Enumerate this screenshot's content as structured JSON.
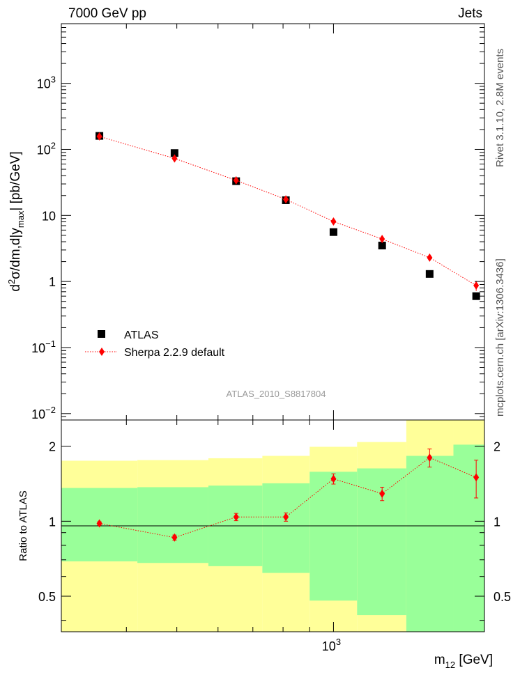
{
  "header": {
    "left": "7000 GeV pp",
    "right": "Jets"
  },
  "side_text": {
    "upper": "Rivet 3.1.10, 2.8M events",
    "lower": "mcplots.cern.ch [arXiv:1306.3436]"
  },
  "colors": {
    "band_outer": "#ffff99",
    "band_inner": "#99ff99",
    "mc": "#ff0000",
    "data": "#000000"
  },
  "chart_data": [
    {
      "type": "scatter",
      "title": "",
      "watermark": "ATLAS_2010_S8817804",
      "ylabel": "d²σ/dm,d|y max| [pb/GeV]",
      "yscale": "log",
      "xscale": "log",
      "xlim": [
        300,
        1950
      ],
      "ylim": [
        0.008,
        8000
      ],
      "y_ticks": [
        {
          "value": 0.01,
          "label_base": "10",
          "label_exp": "−2"
        },
        {
          "value": 0.1,
          "label_base": "10",
          "label_exp": "−1"
        },
        {
          "value": 1,
          "label_base": "1",
          "label_exp": ""
        },
        {
          "value": 10,
          "label_base": "10",
          "label_exp": ""
        },
        {
          "value": 100,
          "label_base": "10",
          "label_exp": "2"
        },
        {
          "value": 1000,
          "label_base": "10",
          "label_exp": "3"
        }
      ],
      "legend_position": "bottom-left",
      "series": [
        {
          "name": "ATLAS",
          "marker": "square",
          "x": [
            355,
            495,
            650,
            810,
            1000,
            1240,
            1530,
            1880
          ],
          "y": [
            160,
            88,
            33,
            17,
            5.6,
            3.5,
            1.3,
            0.6
          ]
        },
        {
          "name": "Sherpa 2.2.9 default",
          "marker": "diamond",
          "line": "dotted",
          "x": [
            355,
            495,
            650,
            810,
            1000,
            1240,
            1530,
            1880
          ],
          "y": [
            157,
            73,
            34,
            17.5,
            8.1,
            4.4,
            2.3,
            0.87
          ],
          "yerr": [
            3,
            2,
            1.2,
            0.8,
            0.45,
            0.3,
            0.18,
            0.15
          ]
        }
      ]
    },
    {
      "type": "scatter",
      "ylabel": "Ratio to ATLAS",
      "xlabel_base": "m",
      "xlabel_sub": "12",
      "xlabel_unit": " [GeV]",
      "xscale": "log",
      "xlim": [
        300,
        1950
      ],
      "ylim": [
        0.36,
        2.55
      ],
      "y_ticks": [
        {
          "value": 0.5,
          "label": "0.5"
        },
        {
          "value": 1,
          "label": "1"
        },
        {
          "value": 2,
          "label": "2"
        }
      ],
      "x_ticks": [
        {
          "value": 1000,
          "label_base": "10",
          "label_exp": "3"
        }
      ],
      "reference_line": 1,
      "bands": [
        {
          "x0": 300,
          "x1": 420,
          "inner": [
            0.69,
            1.36
          ],
          "outer": [
            0.36,
            1.75
          ]
        },
        {
          "x0": 420,
          "x1": 575,
          "inner": [
            0.68,
            1.37
          ],
          "outer": [
            0.36,
            1.76
          ]
        },
        {
          "x0": 575,
          "x1": 730,
          "inner": [
            0.66,
            1.39
          ],
          "outer": [
            0.36,
            1.79
          ]
        },
        {
          "x0": 730,
          "x1": 900,
          "inner": [
            0.62,
            1.42
          ],
          "outer": [
            0.36,
            1.83
          ]
        },
        {
          "x0": 900,
          "x1": 1110,
          "inner": [
            0.48,
            1.58
          ],
          "outer": [
            0.36,
            1.99
          ]
        },
        {
          "x0": 1110,
          "x1": 1380,
          "inner": [
            0.42,
            1.63
          ],
          "outer": [
            0.36,
            2.08
          ]
        },
        {
          "x0": 1380,
          "x1": 1700,
          "inner": [
            0.36,
            1.83
          ],
          "outer": [
            0.36,
            2.55
          ]
        },
        {
          "x0": 1700,
          "x1": 1950,
          "inner": [
            0.36,
            2.03
          ],
          "outer": [
            0.36,
            2.55
          ]
        }
      ],
      "series": [
        {
          "name": "Sherpa 2.2.9 default",
          "marker": "diamond",
          "line": "dotted",
          "x": [
            355,
            495,
            650,
            810,
            1000,
            1240,
            1530,
            1880
          ],
          "y": [
            0.98,
            0.86,
            1.04,
            1.04,
            1.48,
            1.29,
            1.8,
            1.5
          ],
          "yerr": [
            0.015,
            0.02,
            0.035,
            0.04,
            0.07,
            0.08,
            0.15,
            0.26
          ]
        }
      ]
    }
  ]
}
